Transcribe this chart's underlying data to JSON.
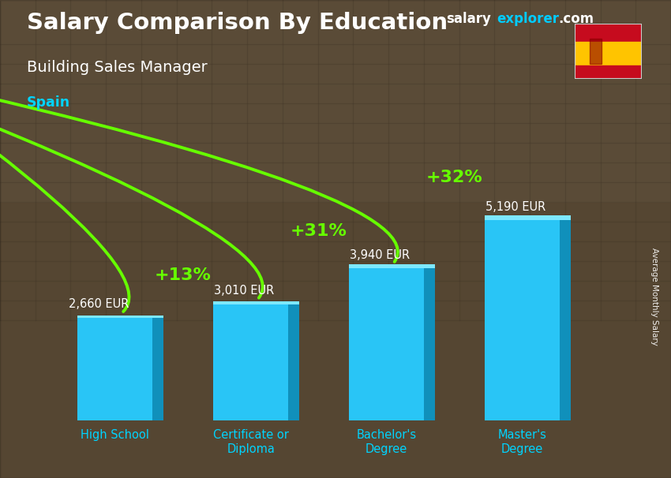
{
  "title": "Salary Comparison By Education",
  "subtitle": "Building Sales Manager",
  "country": "Spain",
  "categories": [
    "High School",
    "Certificate or\nDiploma",
    "Bachelor's\nDegree",
    "Master's\nDegree"
  ],
  "values": [
    2660,
    3010,
    3940,
    5190
  ],
  "labels": [
    "2,660 EUR",
    "3,010 EUR",
    "3,940 EUR",
    "5,190 EUR"
  ],
  "pct_changes": [
    "+13%",
    "+31%",
    "+32%"
  ],
  "bar_color_main": "#29c5f6",
  "bar_color_light": "#7de8ff",
  "bar_color_dark": "#1a8fb8",
  "bar_color_side": "#1090bb",
  "pct_color": "#66ff00",
  "title_color": "#ffffff",
  "subtitle_color": "#ffffff",
  "country_color": "#00d4ff",
  "label_color": "#ffffff",
  "ylabel_text": "Average Monthly Salary",
  "bg_color": "#6b5a45",
  "ylim": [
    0,
    6800
  ],
  "bar_width": 0.55,
  "x_positions": [
    0,
    1,
    2,
    3
  ]
}
